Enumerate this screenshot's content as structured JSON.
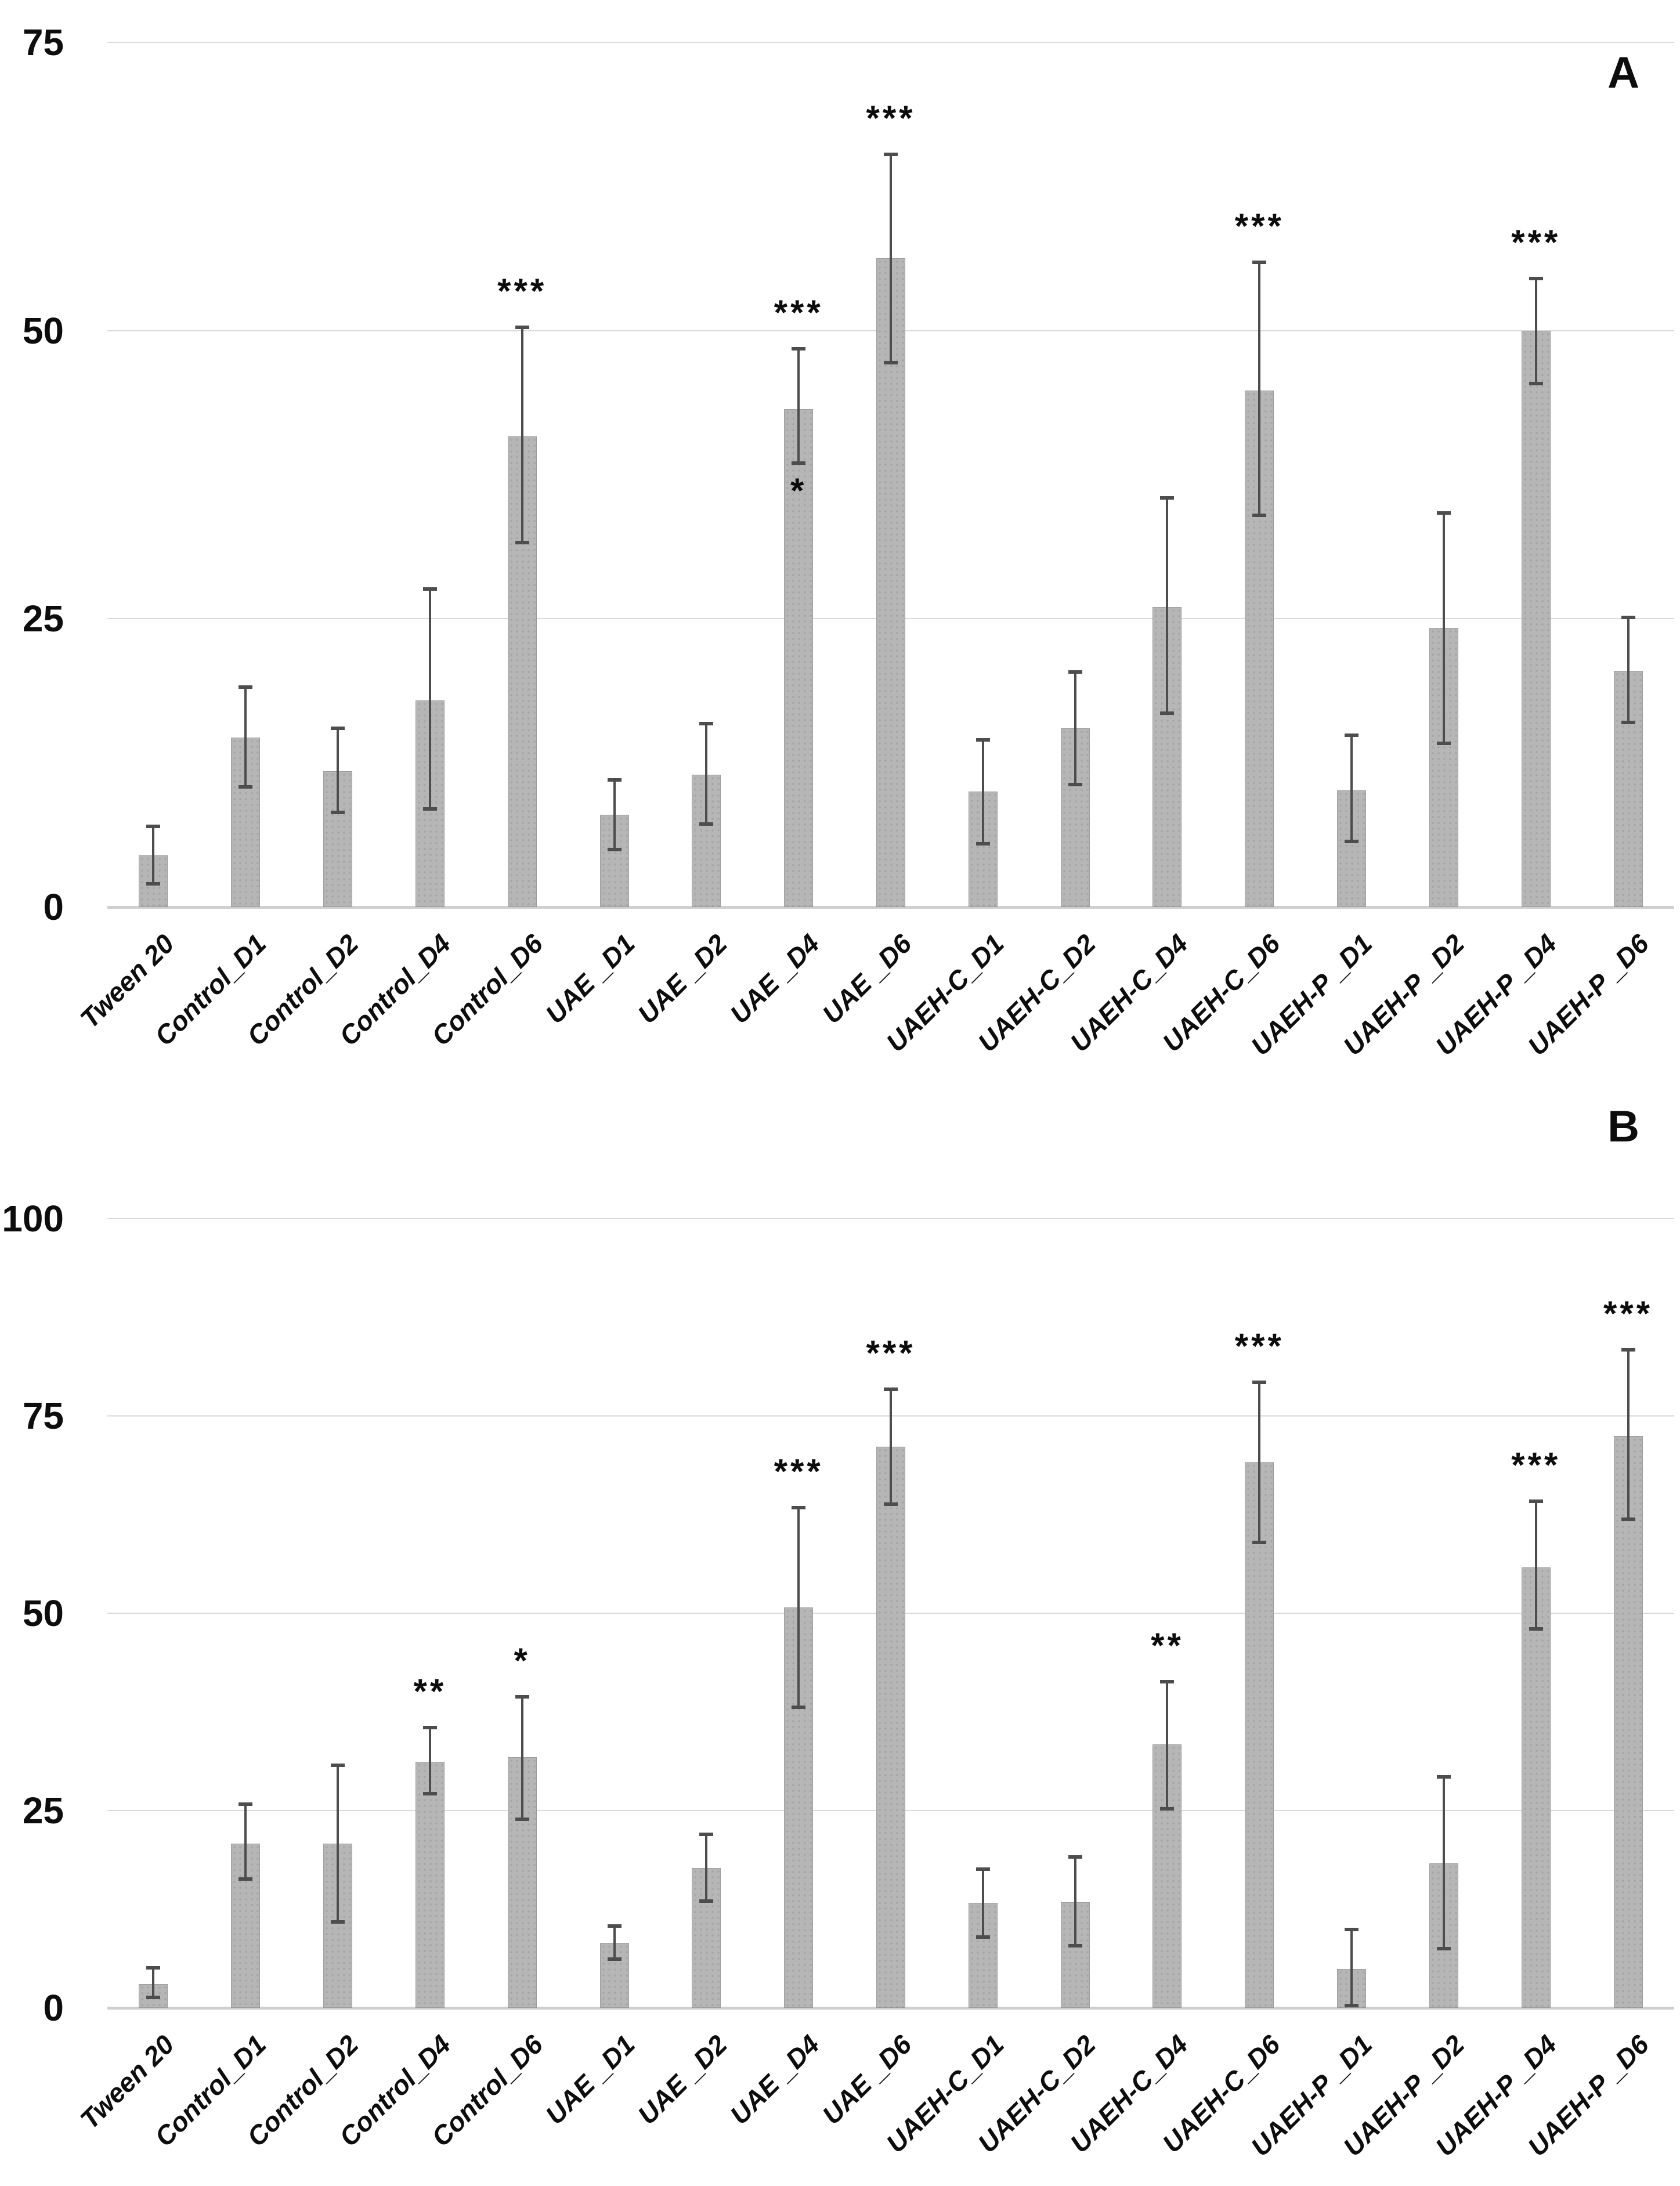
{
  "figure": {
    "background": "#ffffff",
    "colors": {
      "bar_fill": "#b6b6b6",
      "bar_dot_texture": "#a6a6a6",
      "error_bar": "#4d4d4d",
      "gridline": "#dadada",
      "axis_line": "#cfcfcf",
      "text": "#0d0d0d"
    }
  },
  "chart_data": [
    {
      "type": "bar",
      "panel_label": "A",
      "title": "",
      "xlabel": "",
      "ylabel": "",
      "ylim": [
        0,
        75
      ],
      "yticks": [
        0,
        25,
        50,
        75
      ],
      "grid": "horizontal",
      "legend": "none",
      "categories": [
        "Tween 20",
        "Control_D1",
        "Control_D2",
        "Control_D4",
        "Control_D6",
        "UAE _D1",
        "UAE _D2",
        "UAE _D4",
        "UAE _D6",
        "UAEH-C_D1",
        "UAEH-C_D2",
        "UAEH-C_D4",
        "UAEH-C_D6",
        "UAEH-P _D1",
        "UAEH-P _D2",
        "UAEH-P _D4",
        "UAEH-P _D6"
      ],
      "values": [
        4.5,
        14.7,
        11.8,
        17.9,
        40.8,
        8.0,
        11.5,
        43.2,
        56.3,
        10.0,
        15.5,
        26.0,
        44.8,
        10.1,
        24.2,
        50.0,
        20.5
      ],
      "error_low": [
        2.0,
        10.4,
        8.2,
        8.5,
        31.6,
        5.0,
        7.2,
        38.5,
        47.2,
        5.5,
        10.6,
        16.8,
        34.0,
        5.7,
        14.2,
        45.4,
        16.0
      ],
      "error_high": [
        7.0,
        19.1,
        15.5,
        27.6,
        50.3,
        11.0,
        15.9,
        48.4,
        65.3,
        14.5,
        20.4,
        35.5,
        55.9,
        14.9,
        34.2,
        54.5,
        25.1
      ],
      "significance": [
        "",
        "",
        "",
        "",
        "***",
        "",
        "",
        "***",
        "***",
        "",
        "",
        "",
        "***",
        "",
        "",
        "***",
        ""
      ],
      "significance_below": [
        "",
        "",
        "",
        "",
        "",
        "",
        "",
        "*",
        "",
        "",
        "",
        "",
        "",
        "",
        "",
        "",
        ""
      ]
    },
    {
      "type": "bar",
      "panel_label": "B",
      "title": "",
      "xlabel": "",
      "ylabel": "",
      "ylim": [
        0,
        100
      ],
      "yticks": [
        0,
        25,
        50,
        75,
        100
      ],
      "grid": "horizontal",
      "legend": "none",
      "categories": [
        "Tween 20",
        "Control_D1",
        "Control_D2",
        "Control_D4",
        "Control_D6",
        "UAE _D1",
        "UAE _D2",
        "UAE _D4",
        "UAE _D6",
        "UAEH-C_D1",
        "UAEH-C_D2",
        "UAEH-C_D4",
        "UAEH-C_D6",
        "UAEH-P _D1",
        "UAEH-P _D2",
        "UAEH-P _D4",
        "UAEH-P _D6"
      ],
      "values": [
        3.0,
        20.8,
        20.8,
        31.2,
        31.8,
        8.2,
        17.7,
        50.7,
        71.1,
        13.3,
        13.4,
        33.4,
        69.1,
        4.9,
        18.3,
        55.8,
        72.4
      ],
      "error_low": [
        1.3,
        16.3,
        10.9,
        27.1,
        23.9,
        6.2,
        13.5,
        38.1,
        63.8,
        9.0,
        7.9,
        25.2,
        59.0,
        0.3,
        7.5,
        48.0,
        61.9
      ],
      "error_high": [
        5.1,
        25.8,
        30.7,
        35.5,
        39.4,
        10.4,
        22.0,
        63.4,
        78.4,
        17.6,
        19.1,
        41.3,
        79.3,
        9.9,
        29.3,
        64.2,
        83.4
      ],
      "significance": [
        "",
        "",
        "",
        "**",
        "*",
        "",
        "",
        "***",
        "***",
        "",
        "",
        "**",
        "***",
        "",
        "",
        "***",
        "***"
      ],
      "significance_below": [
        "",
        "",
        "",
        "",
        "",
        "",
        "",
        "",
        "",
        "",
        "",
        "",
        "",
        "",
        "",
        "",
        ""
      ]
    }
  ]
}
